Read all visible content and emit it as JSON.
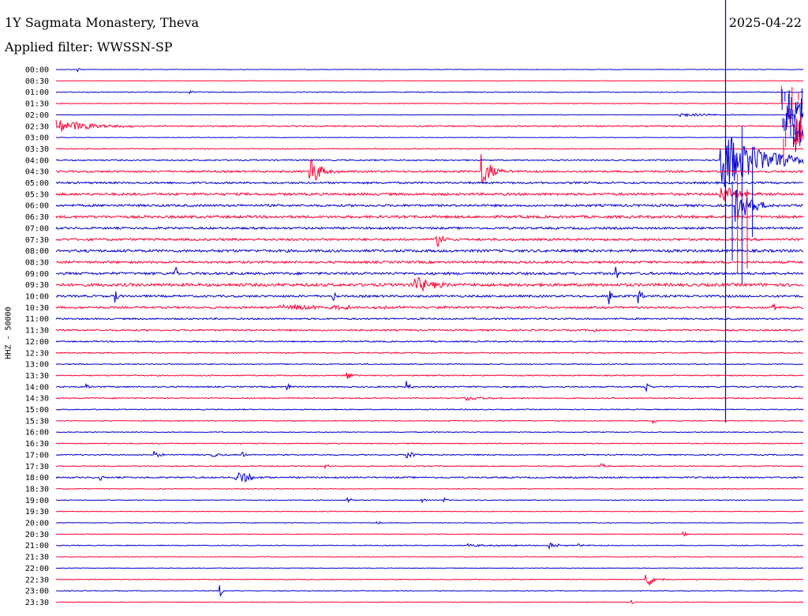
{
  "header": {
    "station": "1Y Sagmata Monastery, Theva",
    "filter": "Applied filter: WWSSN-SP",
    "date": "2025-04-22"
  },
  "axis": {
    "channel_label": "HHZ - 50000"
  },
  "colors": {
    "blue": "#0000cc",
    "red": "#ff0033"
  },
  "chart_data": {
    "type": "line",
    "title": "1Y Sagmata Monastery, Theva",
    "subtitle": "Applied filter: WWSSN-SP",
    "date": "2025-04-22",
    "ylabel": "HHZ - 50000",
    "rows": [
      "00:00",
      "00:30",
      "01:00",
      "01:30",
      "02:00",
      "02:30",
      "03:00",
      "03:30",
      "04:00",
      "04:30",
      "05:00",
      "05:30",
      "06:00",
      "06:30",
      "07:00",
      "07:30",
      "08:00",
      "08:30",
      "09:00",
      "09:30",
      "10:00",
      "10:30",
      "11:00",
      "11:30",
      "12:00",
      "12:30",
      "13:00",
      "13:30",
      "14:00",
      "14:30",
      "15:00",
      "15:30",
      "16:00",
      "16:30",
      "17:00",
      "17:30",
      "18:00",
      "18:30",
      "19:00",
      "19:30",
      "20:00",
      "20:30",
      "21:00",
      "21:30",
      "22:00",
      "22:30",
      "23:00",
      "23:30"
    ],
    "row_colors": [
      "blue",
      "red"
    ],
    "noise": [
      0.3,
      0.3,
      0.5,
      0.5,
      0.3,
      0.8,
      0.3,
      0.6,
      0.8,
      1.2,
      1.2,
      1.5,
      1.4,
      1.6,
      1.3,
      1.4,
      1.6,
      1.4,
      1.5,
      1.8,
      1.3,
      1.2,
      1.0,
      1.0,
      0.8,
      0.7,
      0.6,
      0.7,
      0.8,
      0.7,
      0.6,
      0.5,
      0.5,
      0.6,
      0.7,
      0.6,
      0.9,
      0.5,
      0.5,
      0.4,
      0.4,
      0.4,
      0.5,
      0.4,
      0.4,
      0.5,
      0.4,
      0.4
    ],
    "events": [
      {
        "row": 0,
        "t": 0.03,
        "amp": 3,
        "dur": 0.004
      },
      {
        "row": 2,
        "t": 0.18,
        "amp": 3,
        "dur": 0.004
      },
      {
        "row": 5,
        "t": 0.0,
        "amp": 10,
        "dur": 0.04
      },
      {
        "row": 4,
        "t": 0.83,
        "amp": 3,
        "dur": 0.04
      },
      {
        "row": 4,
        "t": 0.99,
        "amp": 18,
        "dur": 0.03
      },
      {
        "row": 5,
        "t": 0.99,
        "amp": 30,
        "dur": 0.03
      },
      {
        "row": 6,
        "t": 0.99,
        "amp": 12,
        "dur": 0.03
      },
      {
        "row": 9,
        "t": 0.34,
        "amp": 25,
        "dur": 0.012
      },
      {
        "row": 9,
        "t": 0.57,
        "amp": 22,
        "dur": 0.012
      },
      {
        "row": 8,
        "t": 0.89,
        "amp": 40,
        "dur": 0.05
      },
      {
        "row": 11,
        "t": 0.89,
        "amp": 12,
        "dur": 0.02
      },
      {
        "row": 12,
        "t": 0.91,
        "amp": 22,
        "dur": 0.02
      },
      {
        "row": 15,
        "t": 0.51,
        "amp": 12,
        "dur": 0.008
      },
      {
        "row": 18,
        "t": 0.16,
        "amp": 10,
        "dur": 0.003
      },
      {
        "row": 18,
        "t": 0.75,
        "amp": 10,
        "dur": 0.003
      },
      {
        "row": 19,
        "t": 0.48,
        "amp": 12,
        "dur": 0.02
      },
      {
        "row": 20,
        "t": 0.08,
        "amp": 10,
        "dur": 0.003
      },
      {
        "row": 20,
        "t": 0.37,
        "amp": 10,
        "dur": 0.003
      },
      {
        "row": 20,
        "t": 0.74,
        "amp": 14,
        "dur": 0.003
      },
      {
        "row": 20,
        "t": 0.78,
        "amp": 14,
        "dur": 0.003
      },
      {
        "row": 21,
        "t": 0.3,
        "amp": 3,
        "dur": 0.15
      },
      {
        "row": 21,
        "t": 0.96,
        "amp": 8,
        "dur": 0.003
      },
      {
        "row": 23,
        "t": 0.72,
        "amp": 8,
        "dur": 0.003
      },
      {
        "row": 27,
        "t": 0.39,
        "amp": 5,
        "dur": 0.006
      },
      {
        "row": 28,
        "t": 0.04,
        "amp": 5,
        "dur": 0.003
      },
      {
        "row": 28,
        "t": 0.31,
        "amp": 6,
        "dur": 0.003
      },
      {
        "row": 28,
        "t": 0.47,
        "amp": 8,
        "dur": 0.004
      },
      {
        "row": 28,
        "t": 0.79,
        "amp": 6,
        "dur": 0.004
      },
      {
        "row": 29,
        "t": 0.55,
        "amp": 3,
        "dur": 0.03
      },
      {
        "row": 31,
        "t": 0.8,
        "amp": 4,
        "dur": 0.003
      },
      {
        "row": 34,
        "t": 0.13,
        "amp": 5,
        "dur": 0.008
      },
      {
        "row": 34,
        "t": 0.21,
        "amp": 4,
        "dur": 0.01
      },
      {
        "row": 34,
        "t": 0.25,
        "amp": 4,
        "dur": 0.003
      },
      {
        "row": 34,
        "t": 0.47,
        "amp": 5,
        "dur": 0.01
      },
      {
        "row": 35,
        "t": 0.36,
        "amp": 3,
        "dur": 0.006
      },
      {
        "row": 35,
        "t": 0.73,
        "amp": 5,
        "dur": 0.004
      },
      {
        "row": 36,
        "t": 0.06,
        "amp": 4,
        "dur": 0.003
      },
      {
        "row": 36,
        "t": 0.24,
        "amp": 12,
        "dur": 0.015
      },
      {
        "row": 38,
        "t": 0.39,
        "amp": 5,
        "dur": 0.004
      },
      {
        "row": 38,
        "t": 0.49,
        "amp": 5,
        "dur": 0.003
      },
      {
        "row": 38,
        "t": 0.52,
        "amp": 3,
        "dur": 0.003
      },
      {
        "row": 40,
        "t": 0.43,
        "amp": 4,
        "dur": 0.003
      },
      {
        "row": 41,
        "t": 0.84,
        "amp": 3,
        "dur": 0.004
      },
      {
        "row": 42,
        "t": 0.55,
        "amp": 2,
        "dur": 0.04
      },
      {
        "row": 42,
        "t": 0.66,
        "amp": 5,
        "dur": 0.01
      },
      {
        "row": 42,
        "t": 0.7,
        "amp": 3,
        "dur": 0.006
      },
      {
        "row": 45,
        "t": 0.79,
        "amp": 12,
        "dur": 0.01
      },
      {
        "row": 46,
        "t": 0.22,
        "amp": 8,
        "dur": 0.003
      },
      {
        "row": 47,
        "t": 0.77,
        "amp": 4,
        "dur": 0.003
      }
    ]
  }
}
